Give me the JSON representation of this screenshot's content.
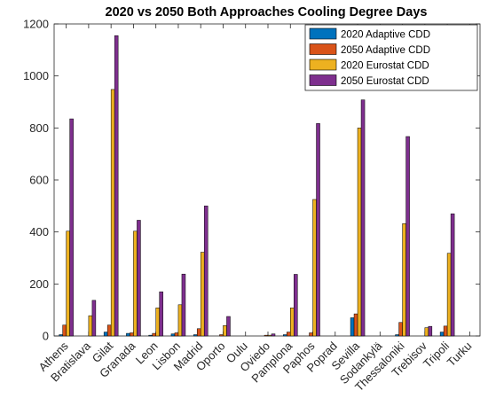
{
  "chart_data": {
    "type": "bar",
    "title": "2020 vs 2050 Both Approaches Cooling Degree Days",
    "xlabel": "",
    "ylabel": "",
    "ylim": [
      0,
      1200
    ],
    "yticks": [
      0,
      200,
      400,
      600,
      800,
      1000,
      1200
    ],
    "grid": false,
    "legend_position": "top-right",
    "categories": [
      "Athens",
      "Bratislava",
      "Gilat",
      "Granada",
      "Leon",
      "Lisbon",
      "Madrid",
      "Oporto",
      "Oulu",
      "Oviedo",
      "Pamplona",
      "Paphos",
      "Poprad",
      "Sevilla",
      "Sodankylä",
      "Thessaloniki",
      "Trebisov",
      "Tripoli",
      "Turku"
    ],
    "series": [
      {
        "name": "2020 Adaptive CDD",
        "color": "#0072BD",
        "values": [
          5,
          0,
          15,
          10,
          3,
          8,
          5,
          0,
          0,
          0,
          5,
          0,
          0,
          70,
          0,
          5,
          0,
          15,
          0
        ]
      },
      {
        "name": "2050 Adaptive CDD",
        "color": "#D95319",
        "values": [
          42,
          0,
          42,
          12,
          10,
          12,
          28,
          5,
          0,
          3,
          15,
          12,
          0,
          85,
          0,
          52,
          0,
          38,
          0
        ]
      },
      {
        "name": "2020 Eurostat CDD",
        "color": "#EDB120",
        "values": [
          403,
          78,
          948,
          403,
          108,
          120,
          322,
          40,
          0,
          3,
          108,
          525,
          0,
          800,
          0,
          432,
          32,
          318,
          0
        ]
      },
      {
        "name": "2050 Eurostat CDD",
        "color": "#7E2F8E",
        "values": [
          835,
          137,
          1155,
          445,
          170,
          238,
          500,
          75,
          0,
          8,
          237,
          817,
          0,
          908,
          0,
          767,
          37,
          470,
          0
        ]
      }
    ]
  }
}
